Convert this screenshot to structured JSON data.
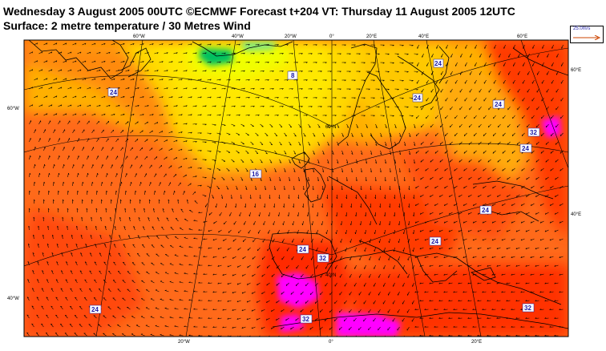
{
  "header": {
    "line1": "Wednesday 3 August 2005 00UTC ©ECMWF Forecast t+204 VT: Thursday 11 August 2005 12UTC",
    "line2": "Surface: 2 metre temperature / 30 Metres Wind"
  },
  "legend": {
    "wind_reference": "25.0m/s"
  },
  "graticule_labels": {
    "top": [
      "60°W",
      "40°W",
      "20°W",
      "0°",
      "20°E",
      "40°E",
      "60°E"
    ],
    "bottom": [
      "20°W",
      "0°",
      "20°E"
    ],
    "left": [
      "60°W",
      "40°W"
    ],
    "right": [
      "60°E",
      "40°E"
    ],
    "inner": [
      "60°N",
      "40°N"
    ]
  },
  "contour_labels": [
    "24",
    "8",
    "16",
    "24",
    "32",
    "24",
    "24",
    "24",
    "24",
    "32",
    "24",
    "24",
    "32",
    "32",
    "24"
  ],
  "colors": {
    "warm": "#ff6a1a",
    "hot": "#ff2a00",
    "very_hot": "#ff00ff",
    "mild": "#ffb000",
    "cool": "#ffd800",
    "cold": "#f0ff00",
    "freezing": "#00c060"
  }
}
